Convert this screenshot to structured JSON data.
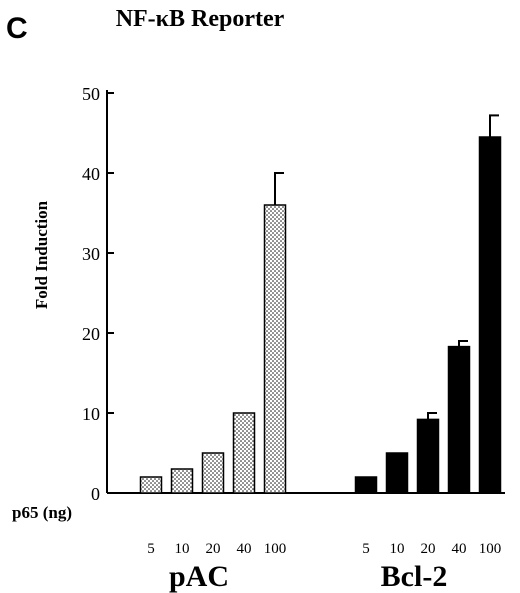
{
  "panel_label": "C",
  "chart_data": {
    "type": "bar",
    "title": "NF-κB  Reporter",
    "ylabel": "Fold Induction",
    "ylim": [
      0,
      50
    ],
    "yticks": [
      0,
      10,
      20,
      30,
      40,
      50
    ],
    "xlabel": "p65 (ng)",
    "categories": [
      "5",
      "10",
      "20",
      "40",
      "100"
    ],
    "series": [
      {
        "name": "pAC",
        "values": [
          2,
          3,
          5,
          10,
          36
        ],
        "errors": [
          0,
          0,
          0,
          0,
          4
        ],
        "fill": "dotted",
        "stroke": "#000000"
      },
      {
        "name": "Bcl-2",
        "values": [
          2,
          5,
          9.2,
          18.3,
          44.5
        ],
        "errors": [
          0,
          0,
          0.8,
          0.7,
          2.7
        ],
        "fill": "#000000",
        "stroke": "#000000"
      }
    ],
    "grid": false,
    "legend": "none"
  }
}
